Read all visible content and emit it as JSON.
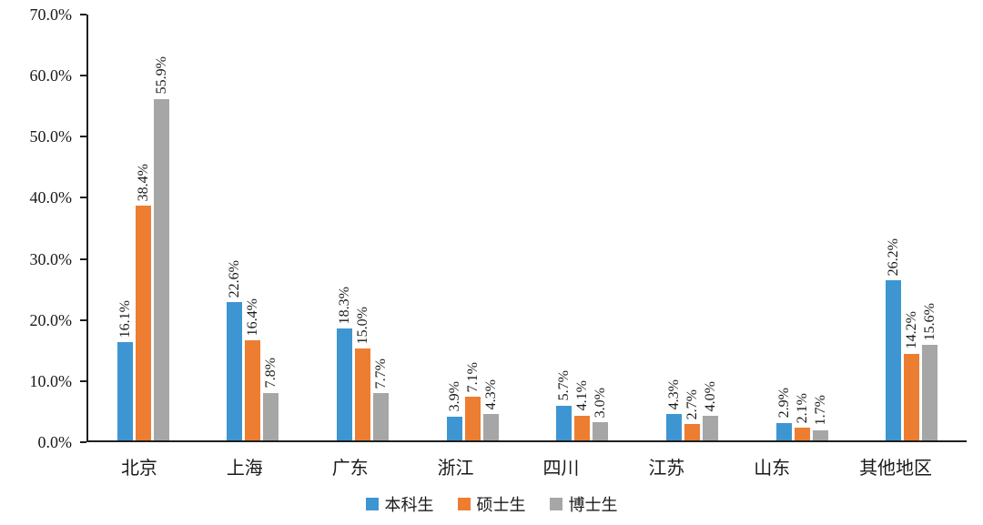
{
  "chart_data": {
    "type": "bar",
    "title": "",
    "xlabel": "",
    "ylabel": "",
    "categories": [
      "北京",
      "上海",
      "广东",
      "浙江",
      "四川",
      "江苏",
      "山东",
      "其他地区"
    ],
    "series": [
      {
        "name": "本科生",
        "color": "#3D96D2",
        "values": [
          16.1,
          22.6,
          18.3,
          3.9,
          5.7,
          4.3,
          2.9,
          26.2
        ]
      },
      {
        "name": "硕士生",
        "color": "#ED7D31",
        "values": [
          38.4,
          16.4,
          15.0,
          7.1,
          4.1,
          2.7,
          2.1,
          14.2
        ]
      },
      {
        "name": "博士生",
        "color": "#A6A6A6",
        "values": [
          55.9,
          7.8,
          7.7,
          4.3,
          3.0,
          4.0,
          1.7,
          15.6
        ]
      }
    ],
    "value_label_suffix": "%",
    "y_ticks": [
      "0.0%",
      "10.0%",
      "20.0%",
      "30.0%",
      "40.0%",
      "50.0%",
      "60.0%",
      "70.0%"
    ],
    "y_tick_step": 10,
    "ylim": [
      0,
      70
    ],
    "grid": false,
    "legend_position": "bottom",
    "colors": {
      "axis": "#1f1f1f",
      "text": "#1a1a1a",
      "background": "#ffffff"
    }
  }
}
